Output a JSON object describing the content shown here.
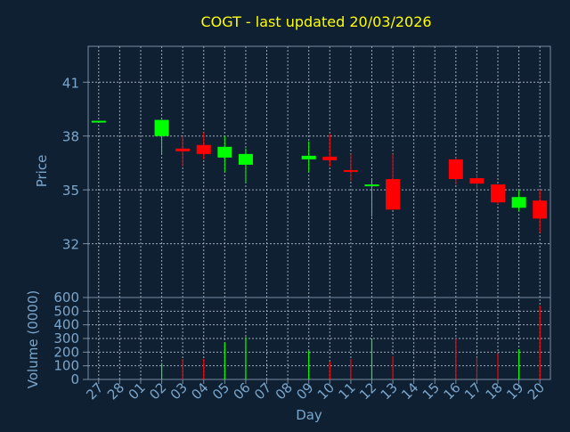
{
  "title": "COGT - last updated 20/03/2026",
  "colors": {
    "background": "#0f2033",
    "text": "#7aa6cc",
    "title": "#ffff00",
    "frame": "#7a8ca0",
    "grid": "#a0aab8",
    "up": "#00ff00",
    "down": "#ff0000"
  },
  "chart_data": [
    {
      "type": "candlestick",
      "title": "COGT - last updated 20/03/2026",
      "ylabel": "Price",
      "xlabel": "",
      "ylim": [
        29,
        43
      ],
      "yticks": [
        32,
        35,
        38,
        41
      ],
      "grid": true,
      "categories": [
        "27",
        "28",
        "01",
        "02",
        "03",
        "04",
        "05",
        "06",
        "07",
        "08",
        "09",
        "10",
        "11",
        "12",
        "13",
        "14",
        "15",
        "16",
        "17",
        "18",
        "19",
        "20"
      ],
      "candles": [
        {
          "x": "27",
          "open": 38.8,
          "close": 38.85,
          "high": 38.85,
          "low": 38.8
        },
        {
          "x": "02",
          "open": 38.0,
          "close": 38.9,
          "high": 38.9,
          "low": 37.0
        },
        {
          "x": "03",
          "open": 37.3,
          "close": 37.15,
          "high": 38.0,
          "low": 36.3
        },
        {
          "x": "04",
          "open": 37.5,
          "close": 37.0,
          "high": 38.2,
          "low": 36.7
        },
        {
          "x": "05",
          "open": 36.8,
          "close": 37.4,
          "high": 38.0,
          "low": 36.0
        },
        {
          "x": "06",
          "open": 36.4,
          "close": 37.0,
          "high": 37.3,
          "low": 35.4
        },
        {
          "x": "09",
          "open": 36.7,
          "close": 36.9,
          "high": 37.7,
          "low": 36.0
        },
        {
          "x": "10",
          "open": 36.85,
          "close": 36.65,
          "high": 38.1,
          "low": 36.3
        },
        {
          "x": "11",
          "open": 36.1,
          "close": 36.05,
          "high": 37.0,
          "low": 35.5
        },
        {
          "x": "12",
          "open": 35.2,
          "close": 35.3,
          "high": 35.6,
          "low": 33.5
        },
        {
          "x": "13",
          "open": 35.6,
          "close": 33.9,
          "high": 37.0,
          "low": 33.9
        },
        {
          "x": "16",
          "open": 36.7,
          "close": 35.6,
          "high": 36.8,
          "low": 35.3
        },
        {
          "x": "17",
          "open": 35.65,
          "close": 35.35,
          "high": 35.9,
          "low": 35.0
        },
        {
          "x": "18",
          "open": 35.3,
          "close": 34.3,
          "high": 35.3,
          "low": 34.2
        },
        {
          "x": "19",
          "open": 34.0,
          "close": 34.6,
          "high": 35.0,
          "low": 33.8
        },
        {
          "x": "20",
          "open": 34.4,
          "close": 33.4,
          "high": 35.0,
          "low": 32.6
        }
      ]
    },
    {
      "type": "bar",
      "ylabel": "Volume (0000)",
      "xlabel": "Day",
      "ylim": [
        0,
        600
      ],
      "yticks": [
        0,
        100,
        200,
        300,
        400,
        500,
        600
      ],
      "grid": true,
      "categories": [
        "27",
        "28",
        "01",
        "02",
        "03",
        "04",
        "05",
        "06",
        "07",
        "08",
        "09",
        "10",
        "11",
        "12",
        "13",
        "14",
        "15",
        "16",
        "17",
        "18",
        "19",
        "20"
      ],
      "bars": [
        {
          "x": "02",
          "value": 120,
          "direction": "up"
        },
        {
          "x": "03",
          "value": 150,
          "direction": "down"
        },
        {
          "x": "04",
          "value": 150,
          "direction": "down"
        },
        {
          "x": "05",
          "value": 270,
          "direction": "up"
        },
        {
          "x": "06",
          "value": 310,
          "direction": "up"
        },
        {
          "x": "09",
          "value": 210,
          "direction": "up"
        },
        {
          "x": "10",
          "value": 130,
          "direction": "down"
        },
        {
          "x": "11",
          "value": 150,
          "direction": "down"
        },
        {
          "x": "12",
          "value": 300,
          "direction": "up"
        },
        {
          "x": "13",
          "value": 170,
          "direction": "down"
        },
        {
          "x": "16",
          "value": 300,
          "direction": "down"
        },
        {
          "x": "17",
          "value": 160,
          "direction": "down"
        },
        {
          "x": "18",
          "value": 190,
          "direction": "down"
        },
        {
          "x": "19",
          "value": 220,
          "direction": "up"
        },
        {
          "x": "20",
          "value": 540,
          "direction": "down"
        }
      ]
    }
  ]
}
